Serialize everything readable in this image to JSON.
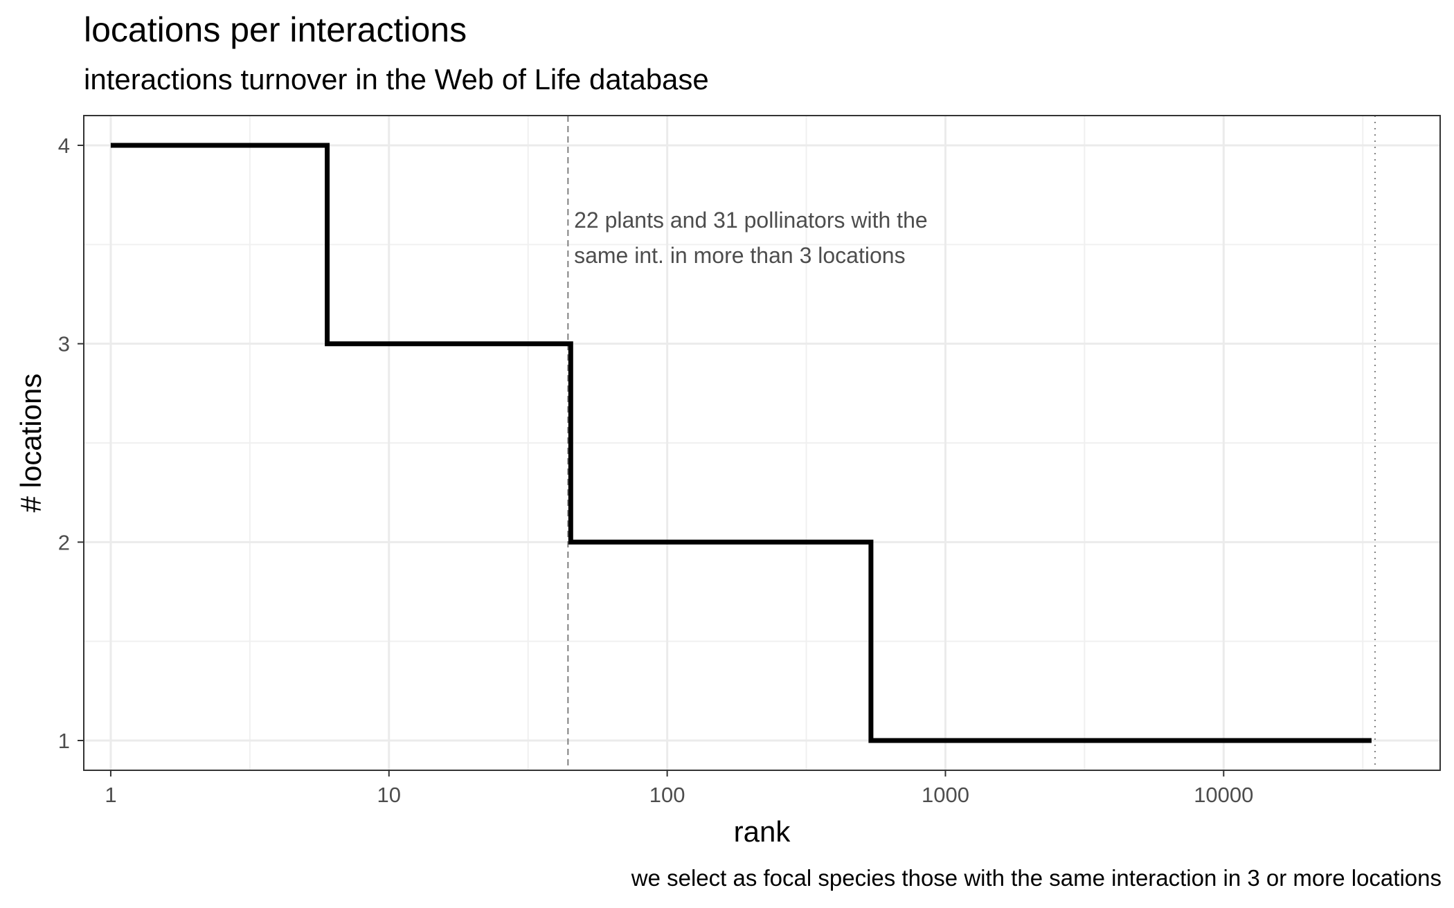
{
  "chart_data": {
    "type": "line",
    "step": true,
    "title": "locations per interactions",
    "subtitle": "interactions turnover in the Web of Life database",
    "caption": "we select as focal species those with the same interaction in 3 or more locations",
    "xlabel": "rank",
    "ylabel": "# locations",
    "x_scale": "log10",
    "xlim": [
      0.8,
      60000
    ],
    "ylim": [
      0.85,
      4.15
    ],
    "x_ticks": [
      1,
      10,
      100,
      1000,
      10000
    ],
    "x_tick_labels": [
      "1",
      "10",
      "100",
      "1000",
      "10000"
    ],
    "y_ticks": [
      1,
      2,
      3,
      4
    ],
    "y_tick_labels": [
      "1",
      "2",
      "3",
      "4"
    ],
    "grid": true,
    "series": [
      {
        "x": [
          1,
          6,
          6,
          45,
          45,
          540,
          540,
          34000
        ],
        "y": [
          4,
          4,
          3,
          3,
          2,
          2,
          1,
          1
        ]
      }
    ],
    "vlines": [
      {
        "x": 44,
        "style": "dashed"
      },
      {
        "x": 35000,
        "style": "dotted"
      }
    ],
    "annotations": [
      {
        "lines": [
          "22 plants and 31 pollinators with the",
          "same int. in more than 3 locations"
        ],
        "x": 46,
        "y": 3.55
      }
    ]
  }
}
